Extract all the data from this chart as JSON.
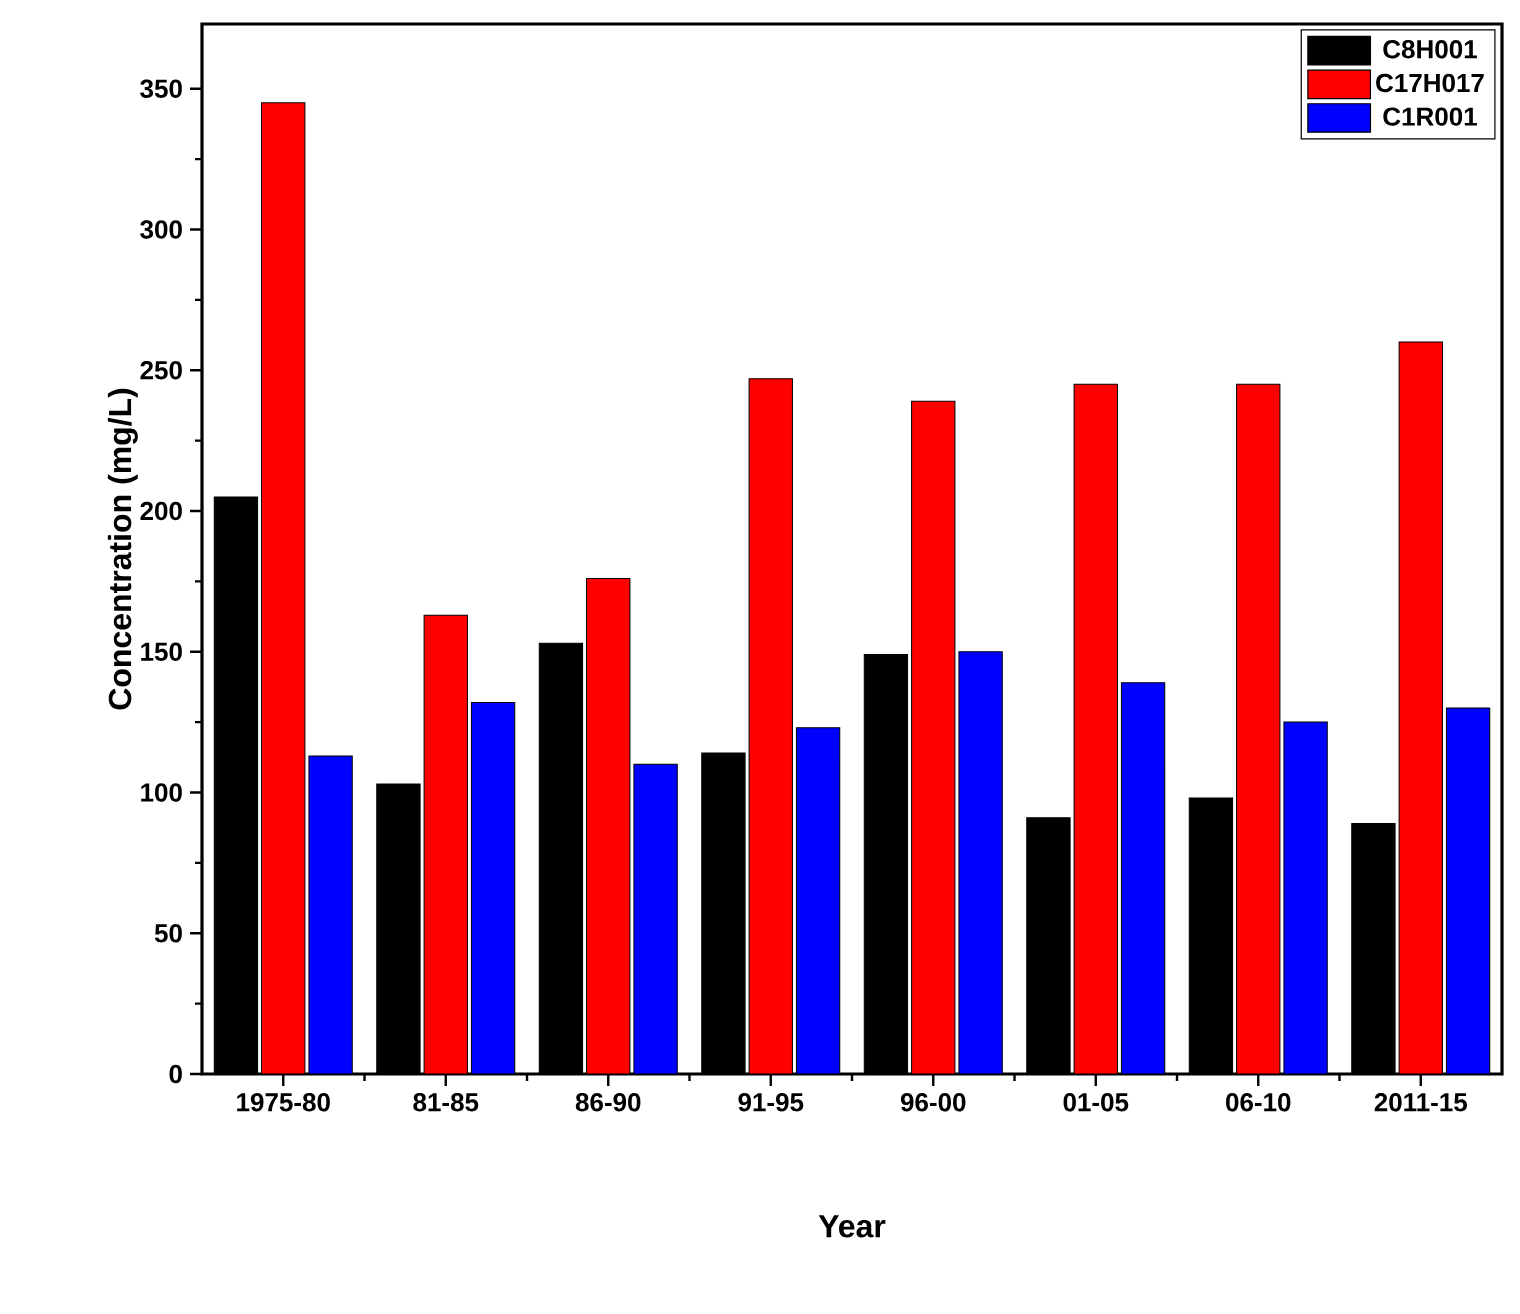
{
  "chart_data": {
    "type": "bar",
    "xlabel": "Year",
    "ylabel": "Concentration (mg/L)",
    "categories": [
      "1975-80",
      "81-85",
      "86-90",
      "91-95",
      "96-00",
      "01-05",
      "06-10",
      "2011-15"
    ],
    "series": [
      {
        "name": "C8H001",
        "color": "#000000",
        "values": [
          205,
          103,
          153,
          114,
          149,
          91,
          98,
          89
        ]
      },
      {
        "name": "C17H017",
        "color": "#ff0000",
        "values": [
          345,
          163,
          176,
          247,
          239,
          245,
          245,
          260
        ]
      },
      {
        "name": "C1R001",
        "color": "#0000ff",
        "values": [
          113,
          132,
          110,
          123,
          150,
          139,
          125,
          130
        ]
      }
    ],
    "ylim": [
      0,
      373
    ],
    "yticks": [
      0,
      50,
      100,
      150,
      200,
      250,
      300,
      350
    ],
    "grid": false,
    "legend": "top right"
  }
}
